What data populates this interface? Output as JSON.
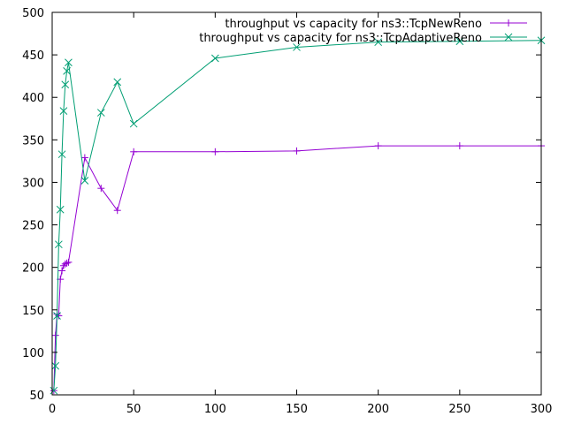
{
  "chart_data": {
    "type": "line",
    "title": "",
    "xlabel": "",
    "ylabel": "",
    "xlim": [
      0,
      300
    ],
    "ylim": [
      50,
      500
    ],
    "x_ticks": [
      0,
      50,
      100,
      150,
      200,
      250,
      300
    ],
    "y_ticks": [
      50,
      100,
      150,
      200,
      250,
      300,
      350,
      400,
      450,
      500
    ],
    "grid": false,
    "legend_position": "top-right",
    "series": [
      {
        "name": "throughput vs capacity for ns3::TcpNewReno",
        "color": "#9400d3",
        "marker": "plus",
        "points": [
          {
            "x": 1,
            "y": 55
          },
          {
            "x": 2,
            "y": 120
          },
          {
            "x": 3,
            "y": 145
          },
          {
            "x": 4,
            "y": 143
          },
          {
            "x": 5,
            "y": 186
          },
          {
            "x": 6,
            "y": 196
          },
          {
            "x": 7,
            "y": 202
          },
          {
            "x": 8,
            "y": 204
          },
          {
            "x": 9,
            "y": 205
          },
          {
            "x": 10,
            "y": 206
          },
          {
            "x": 20,
            "y": 329
          },
          {
            "x": 30,
            "y": 293
          },
          {
            "x": 40,
            "y": 267
          },
          {
            "x": 50,
            "y": 336
          },
          {
            "x": 100,
            "y": 336
          },
          {
            "x": 150,
            "y": 337
          },
          {
            "x": 200,
            "y": 343
          },
          {
            "x": 250,
            "y": 343
          },
          {
            "x": 300,
            "y": 343
          }
        ]
      },
      {
        "name": "throughput vs capacity for ns3::TcpAdaptiveReno",
        "color": "#009e73",
        "marker": "cross",
        "points": [
          {
            "x": 1,
            "y": 55
          },
          {
            "x": 2,
            "y": 84
          },
          {
            "x": 3,
            "y": 143
          },
          {
            "x": 4,
            "y": 227
          },
          {
            "x": 5,
            "y": 268
          },
          {
            "x": 6,
            "y": 333
          },
          {
            "x": 7,
            "y": 384
          },
          {
            "x": 8,
            "y": 415
          },
          {
            "x": 9,
            "y": 431
          },
          {
            "x": 10,
            "y": 441
          },
          {
            "x": 20,
            "y": 302
          },
          {
            "x": 30,
            "y": 382
          },
          {
            "x": 40,
            "y": 418
          },
          {
            "x": 50,
            "y": 369
          },
          {
            "x": 100,
            "y": 446
          },
          {
            "x": 150,
            "y": 459
          },
          {
            "x": 200,
            "y": 465
          },
          {
            "x": 250,
            "y": 466
          },
          {
            "x": 300,
            "y": 467
          }
        ]
      }
    ]
  }
}
